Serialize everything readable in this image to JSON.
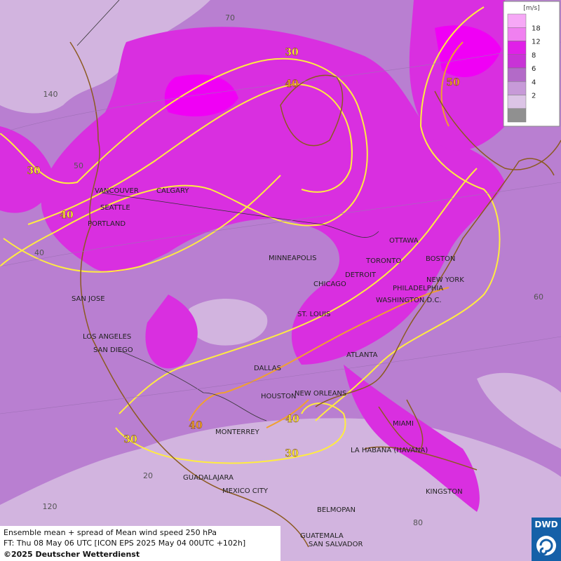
{
  "map": {
    "cities": [
      "VANCOUVER",
      "CALGARY",
      "SEATTLE",
      "PORTLAND",
      "MINNEAPOLIS",
      "OTTAWA",
      "TORONTO",
      "BOSTON",
      "DETROIT",
      "CHICAGO",
      "NEW YORK",
      "PHILADELPHIA",
      "WASHINGTON D.C.",
      "SAN JOSE",
      "ST. LOUIS",
      "LOS ANGELES",
      "SAN DIEGO",
      "DALLAS",
      "ATLANTA",
      "HOUSTON",
      "NEW ORLEANS",
      "MONTERREY",
      "MIAMI",
      "LA HABANA (HAVANA)",
      "GUADALAJARA",
      "MEXICO CITY",
      "KINGSTON",
      "BELMOPAN",
      "GUATEMALA",
      "SAN SALVADOR"
    ],
    "contour_labels": [
      30,
      40,
      50,
      30,
      40,
      40,
      40,
      30,
      30
    ],
    "grid_labels": [
      70,
      140,
      50,
      40,
      60,
      20,
      120,
      80
    ]
  },
  "legend": {
    "unit": "[m/s]",
    "ticks": [
      18,
      12,
      8,
      6,
      4,
      2
    ],
    "colors": [
      "#f6a8f6",
      "#f080f0",
      "#e020e8",
      "#c833d6",
      "#b36ac8",
      "#c79ad8",
      "#dcc4e6",
      "#909090"
    ]
  },
  "caption": {
    "lines": [
      "Ensemble mean + spread of Mean wind speed 250 hPa",
      "FT: Thu 08 May 06 UTC [ICON EPS 2025 May 04 00UTC +102h]",
      "©2025 Deutscher Wetterdienst"
    ]
  },
  "logo": {
    "text": "DWD"
  }
}
